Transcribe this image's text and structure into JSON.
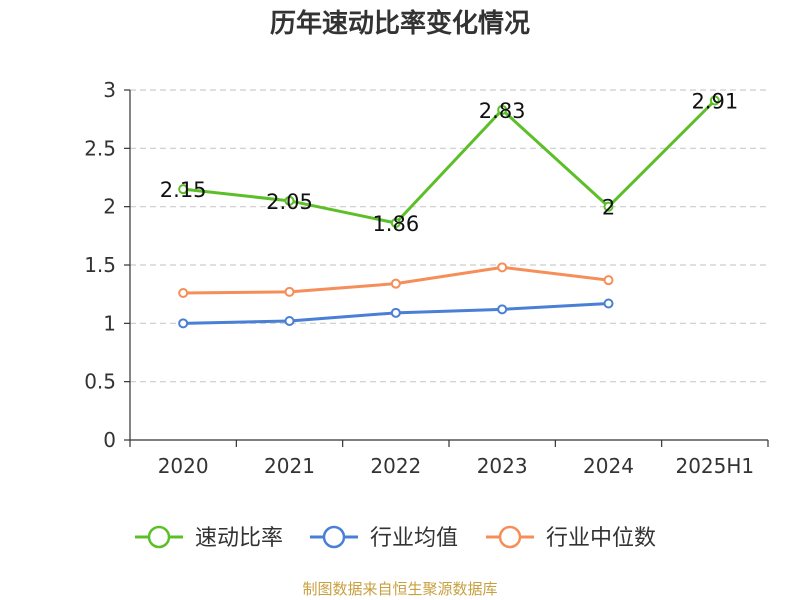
{
  "chart_data": {
    "type": "line",
    "title": "历年速动比率变化情况",
    "categories": [
      "2020",
      "2021",
      "2022",
      "2023",
      "2024",
      "2025H1"
    ],
    "ylim": [
      0,
      3
    ],
    "yticks": [
      "0",
      "0.5",
      "1",
      "1.5",
      "2",
      "2.5",
      "3"
    ],
    "grid": "horizontal dashed",
    "legend_position": "bottom",
    "series": [
      {
        "name": "速动比率",
        "color": "#5cbf28",
        "values": [
          2.15,
          2.05,
          1.86,
          2.83,
          2.0,
          2.91
        ],
        "labels": [
          "2.15",
          "2.05",
          "1.86",
          "2.83",
          "2",
          "2.91"
        ]
      },
      {
        "name": "行业均值",
        "color": "#4a7fd6",
        "values": [
          1.0,
          1.02,
          1.09,
          1.12,
          1.17,
          null
        ]
      },
      {
        "name": "行业中位数",
        "color": "#f58e58",
        "values": [
          1.26,
          1.27,
          1.34,
          1.48,
          1.37,
          null
        ]
      }
    ]
  },
  "source_text": "制图数据来自恒生聚源数据库"
}
